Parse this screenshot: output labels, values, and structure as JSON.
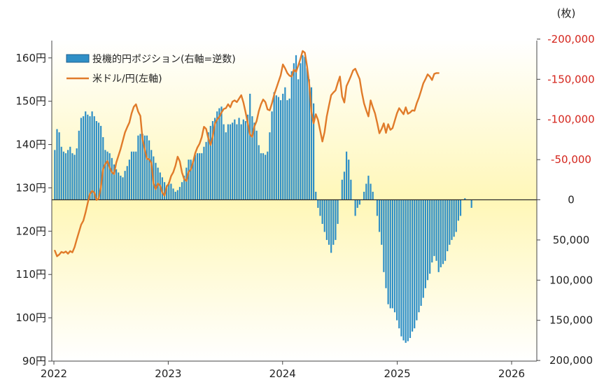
{
  "chart_data": {
    "type": "bar+line",
    "title": "",
    "right_axis_unit": "(枚)",
    "x_ticks": [
      "2022",
      "2023",
      "2024",
      "2025",
      "2026"
    ],
    "left_axis": {
      "ticks": [
        "90円",
        "100円",
        "110円",
        "120円",
        "130円",
        "140円",
        "150円",
        "160円"
      ],
      "ylim": [
        90,
        164
      ],
      "values": [
        90,
        100,
        110,
        120,
        130,
        140,
        150,
        160
      ]
    },
    "right_axis": {
      "ticks": [
        "-200,000",
        "-150,000",
        "-100,000",
        "-50,000",
        "0",
        "50,000",
        "100,000",
        "150,000",
        "200,000"
      ],
      "values": [
        -200000,
        -150000,
        -100000,
        -50000,
        0,
        50000,
        100000,
        150000,
        200000
      ],
      "inverted": true,
      "zero_label": "0"
    },
    "legend": {
      "placement": "top-left",
      "bar_label": "投機的円ポジション(右軸=逆数)",
      "line_label": "米ドル/円(左軸)"
    },
    "colors": {
      "bars": "#2f8fc6",
      "bar_edge": "#1d5f8e",
      "line": "#e07b2a",
      "right_axis_text": "#d4241c",
      "bg_top": "#fffde8",
      "bg_mid": "#fff7b8"
    },
    "series_positions": {
      "name": "投機的円ポジション(右軸=逆数)",
      "x_start": "2022-01-04",
      "interval_days": 7,
      "values": [
        -62000,
        -88000,
        -84000,
        -66000,
        -60000,
        -58000,
        -62000,
        -66000,
        -58000,
        -56000,
        -64000,
        -86000,
        -102000,
        -104000,
        -110000,
        -106000,
        -104000,
        -110000,
        -104000,
        -98000,
        -96000,
        -92000,
        -78000,
        -62000,
        -60000,
        -58000,
        -52000,
        -44000,
        -38000,
        -34000,
        -30000,
        -28000,
        -36000,
        -42000,
        -50000,
        -60000,
        -60000,
        -60000,
        -80000,
        -82000,
        -82000,
        -80000,
        -80000,
        -74000,
        -62000,
        -54000,
        -46000,
        -40000,
        -34000,
        -28000,
        -22000,
        -18000,
        -22000,
        -20000,
        -14000,
        -10000,
        -12000,
        -16000,
        -22000,
        -30000,
        -40000,
        -50000,
        -50000,
        -48000,
        -56000,
        -58000,
        -58000,
        -58000,
        -66000,
        -72000,
        -84000,
        -92000,
        -98000,
        -102000,
        -110000,
        -114000,
        -116000,
        -94000,
        -84000,
        -94000,
        -94000,
        -96000,
        -100000,
        -94000,
        -102000,
        -94000,
        -100000,
        -98000,
        -106000,
        -132000,
        -104000,
        -96000,
        -86000,
        -68000,
        -58000,
        -58000,
        -56000,
        -60000,
        -84000,
        -110000,
        -134000,
        -130000,
        -128000,
        -124000,
        -132000,
        -140000,
        -124000,
        -126000,
        -160000,
        -170000,
        -180000,
        -150000,
        -170000,
        -180000,
        -178000,
        -164000,
        -150000,
        -140000,
        -120000,
        -10000,
        10000,
        20000,
        30000,
        40000,
        50000,
        56000,
        66000,
        56000,
        50000,
        30000,
        0,
        -25000,
        -35000,
        -60000,
        -50000,
        -25000,
        0,
        20000,
        10000,
        6000,
        0,
        -10000,
        -20000,
        -30000,
        -20000,
        -10000,
        0,
        20000,
        40000,
        56000,
        90000,
        110000,
        130000,
        135000,
        135000,
        140000,
        150000,
        160000,
        170000,
        175000,
        178000,
        176000,
        172000,
        164000,
        160000,
        150000,
        140000,
        132000,
        122000,
        110000,
        100000,
        92000,
        78000,
        70000,
        76000,
        90000,
        84000,
        80000,
        76000,
        64000,
        56000,
        50000,
        46000,
        40000,
        26000,
        20000,
        0,
        -2000,
        0,
        0,
        10000
      ]
    },
    "series_usdjpy": {
      "name": "米ドル/円(左軸)",
      "x_start": "2022-01-04",
      "interval_days": 7,
      "values": [
        115.5,
        114.2,
        114.6,
        115.2,
        115.0,
        115.3,
        114.8,
        115.4,
        115.1,
        116.3,
        118.1,
        119.8,
        121.5,
        122.4,
        124.3,
        126.5,
        128.6,
        129.3,
        128.9,
        127.2,
        127.5,
        130.1,
        134.3,
        135.5,
        136.2,
        134.7,
        133.6,
        133.2,
        135.8,
        137.4,
        139.0,
        140.9,
        142.8,
        144.0,
        145.1,
        147.2,
        148.7,
        149.3,
        147.6,
        146.6,
        141.2,
        138.9,
        136.7,
        136.6,
        135.8,
        131.0,
        129.7,
        131.0,
        130.5,
        128.9,
        128.2,
        130.3,
        131.0,
        132.7,
        133.6,
        135.1,
        137.2,
        136.1,
        133.5,
        132.0,
        131.6,
        133.7,
        134.2,
        135.9,
        138.0,
        139.3,
        140.2,
        141.7,
        144.1,
        143.6,
        141.4,
        139.9,
        141.8,
        144.8,
        145.8,
        146.4,
        147.4,
        148.2,
        148.4,
        149.3,
        148.6,
        149.9,
        150.2,
        149.8,
        150.6,
        151.4,
        149.7,
        147.4,
        144.9,
        142.3,
        141.8,
        144.2,
        145.4,
        147.7,
        149.3,
        150.4,
        149.8,
        148.1,
        147.9,
        149.5,
        151.5,
        153.0,
        154.5,
        156.0,
        158.5,
        157.6,
        156.5,
        155.9,
        155.7,
        157.3,
        156.8,
        158.2,
        159.8,
        161.6,
        161.2,
        158.1,
        154.0,
        147.5,
        144.9,
        147.0,
        145.7,
        143.2,
        140.7,
        142.9,
        146.5,
        149.0,
        151.4,
        152.0,
        152.5,
        154.2,
        155.7,
        151.1,
        149.7,
        153.5,
        154.6,
        155.8,
        157.1,
        157.5,
        156.3,
        155.1,
        152.0,
        149.5,
        147.9,
        146.5,
        150.2,
        148.6,
        147.2,
        145.0,
        142.6,
        143.6,
        144.9,
        142.7,
        144.7,
        143.4,
        143.8,
        145.5,
        147.2,
        148.4,
        147.7,
        147.0,
        148.6,
        147.1,
        147.4,
        147.9,
        147.8,
        149.5,
        150.8,
        152.4,
        154.1,
        155.1,
        156.2,
        155.7,
        154.9,
        156.3,
        156.5,
        156.5
      ]
    }
  }
}
